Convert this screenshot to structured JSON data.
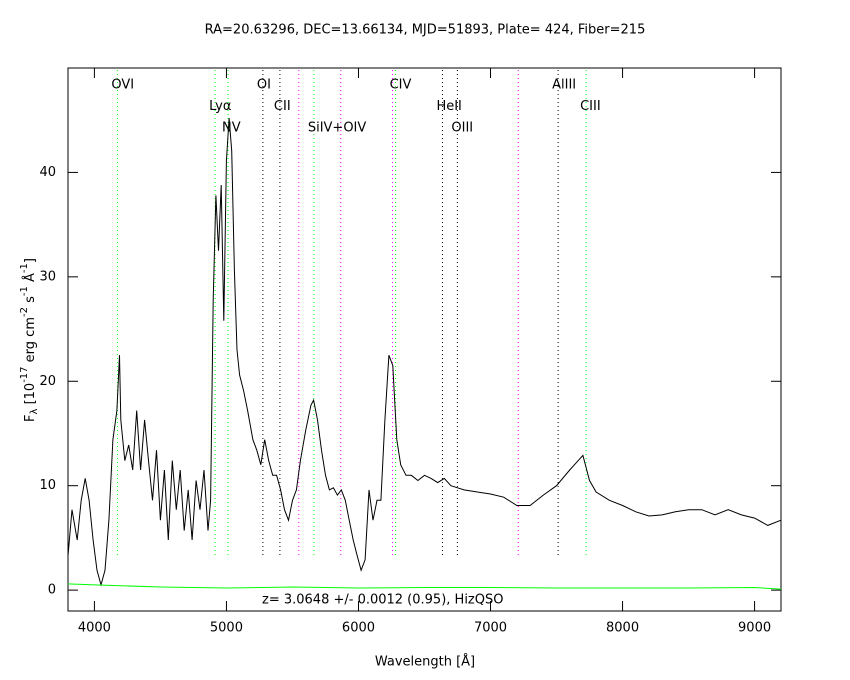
{
  "chart_data": {
    "type": "line",
    "title": "RA=20.63296, DEC=13.66134, MJD=51893, Plate= 424, Fiber=215",
    "xlabel": "Wavelength [Å]",
    "ylabel": [
      "F",
      "λ",
      " [10",
      "-17",
      " erg cm",
      "-2",
      " s",
      "-1",
      " Å",
      "-1",
      "]"
    ],
    "annotation": "z= 3.0648 +/- 0.0012 (0.95), HizQSO",
    "xlim": [
      3800,
      9200
    ],
    "xticks": [
      4000,
      5000,
      6000,
      7000,
      8000,
      9000
    ],
    "ylim": [
      -2,
      50
    ],
    "yticks": [
      0,
      10,
      20,
      30,
      40
    ],
    "lines": [
      {
        "label": "OVI",
        "x": 4174,
        "color": "#00ff00"
      },
      {
        "label": "Lyα",
        "x": 4914,
        "color": "#00ff00"
      },
      {
        "label": "NV",
        "x": 5012,
        "color": "#00ff00"
      },
      {
        "label": "OI",
        "x": 5276,
        "color": "#000000"
      },
      {
        "label": "CII",
        "x": 5405,
        "color": "#000000"
      },
      {
        "label": "SiIV+OIV",
        "x": 5662,
        "color": "#00ff00"
      },
      {
        "label": "CIV",
        "x": 6281,
        "color": "#00ff00"
      },
      {
        "label": "HeII",
        "x": 6636,
        "color": "#000000"
      },
      {
        "label": "OIII",
        "x": 6749,
        "color": "#000000"
      },
      {
        "label": "AlIII",
        "x": 7512,
        "color": "#000000"
      },
      {
        "label": "CIII",
        "x": 7724,
        "color": "#00ff00"
      }
    ],
    "extra_lines": [
      {
        "x": 5548,
        "color": "#ff00ff"
      },
      {
        "x": 5866,
        "color": "#ff00ff"
      },
      {
        "x": 6258,
        "color": "#ff00ff"
      },
      {
        "x": 7210,
        "color": "#ff00ff"
      }
    ],
    "series": [
      {
        "color": "#000000",
        "x": [
          3800,
          3830,
          3870,
          3900,
          3930,
          3960,
          3990,
          4020,
          4050,
          4080,
          4110,
          4140,
          4170,
          4190,
          4200,
          4230,
          4260,
          4290,
          4320,
          4350,
          4380,
          4410,
          4440,
          4470,
          4500,
          4530,
          4560,
          4590,
          4620,
          4650,
          4680,
          4710,
          4740,
          4770,
          4800,
          4830,
          4860,
          4880,
          4900,
          4920,
          4940,
          4960,
          4980,
          5000,
          5020,
          5040,
          5060,
          5080,
          5100,
          5130,
          5160,
          5200,
          5230,
          5260,
          5290,
          5320,
          5350,
          5380,
          5410,
          5440,
          5470,
          5500,
          5530,
          5560,
          5600,
          5640,
          5660,
          5690,
          5720,
          5750,
          5780,
          5810,
          5840,
          5870,
          5900,
          5930,
          5960,
          5990,
          6020,
          6050,
          6080,
          6110,
          6140,
          6170,
          6200,
          6230,
          6260,
          6290,
          6320,
          6360,
          6400,
          6450,
          6500,
          6550,
          6600,
          6650,
          6700,
          6750,
          6800,
          6900,
          7000,
          7100,
          7200,
          7300,
          7400,
          7500,
          7600,
          7650,
          7700,
          7750,
          7800,
          7900,
          8000,
          8100,
          8200,
          8300,
          8400,
          8500,
          8600,
          8700,
          8800,
          8900,
          9000,
          9100,
          9200
        ],
        "values": [
          3.3,
          7.7,
          4.8,
          8.6,
          10.7,
          8.6,
          4.8,
          1.9,
          0.5,
          1.9,
          6.7,
          14.4,
          17.2,
          22.5,
          16.3,
          12.4,
          13.9,
          11.5,
          17.2,
          11.5,
          16.3,
          12.4,
          8.6,
          13.4,
          6.7,
          11.5,
          4.8,
          12.4,
          7.7,
          11.5,
          5.7,
          9.6,
          4.8,
          10.5,
          7.7,
          11.5,
          5.7,
          8.6,
          27.8,
          37.8,
          32.5,
          38.8,
          25.8,
          41.1,
          45.2,
          42.1,
          30.6,
          23.0,
          20.6,
          19.1,
          17.2,
          14.4,
          13.4,
          12.0,
          14.4,
          12.4,
          11.0,
          11.0,
          9.6,
          7.7,
          6.7,
          8.6,
          9.6,
          12.4,
          15.3,
          17.7,
          18.2,
          16.3,
          13.4,
          11.0,
          9.6,
          9.8,
          9.1,
          9.6,
          8.6,
          6.7,
          4.8,
          3.3,
          1.9,
          2.9,
          9.6,
          6.7,
          8.6,
          8.6,
          16.3,
          22.5,
          21.5,
          14.4,
          12.0,
          11.0,
          11.0,
          10.5,
          11.0,
          10.7,
          10.3,
          10.7,
          10.0,
          9.8,
          9.6,
          9.4,
          9.2,
          8.9,
          8.1,
          8.1,
          9.1,
          10.0,
          11.5,
          12.2,
          12.9,
          10.5,
          9.4,
          8.6,
          8.1,
          7.5,
          7.1,
          7.2,
          7.5,
          7.7,
          7.7,
          7.2,
          7.7,
          7.2,
          6.9,
          6.2,
          6.7
        ]
      },
      {
        "color": "#00ff00",
        "x": [
          3800,
          4000,
          4500,
          5000,
          5500,
          6000,
          6500,
          7000,
          7500,
          8000,
          8500,
          9000,
          9200
        ],
        "values": [
          0.6,
          0.5,
          0.3,
          0.2,
          0.3,
          0.2,
          0.25,
          0.25,
          0.2,
          0.2,
          0.2,
          0.25,
          0.1
        ]
      }
    ]
  }
}
